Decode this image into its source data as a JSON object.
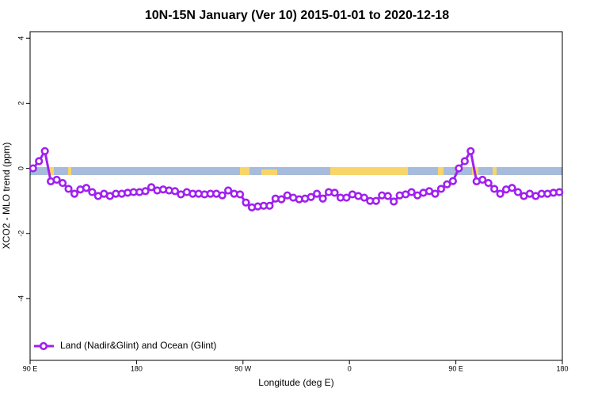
{
  "chart_data": {
    "type": "line",
    "title": "10N-15N January (Ver 10)   2015-01-01 to 2020-12-18",
    "x_label": "Longitude (deg E)",
    "y_label": "XCO2 - MLO trend (ppm)",
    "xlim": [
      90,
      540
    ],
    "ylim": [
      -5.9,
      4.2
    ],
    "xticks": [
      {
        "value": 90,
        "label": "90 E"
      },
      180,
      {
        "value": 270,
        "label": "90 W"
      },
      {
        "value": 360,
        "label": "0"
      },
      {
        "value": 450,
        "label": "90 E"
      },
      {
        "value": 540,
        "label": "180"
      }
    ],
    "yticks": [
      -4,
      -2,
      0,
      2,
      4
    ],
    "grid": false,
    "legend": "bottom-left",
    "x": [
      92.5,
      97.5,
      102.5,
      107.5,
      112.5,
      117.5,
      122.5,
      127.5,
      132.5,
      137.5,
      142.5,
      147.5,
      152.5,
      157.5,
      162.5,
      167.5,
      172.5,
      177.5,
      182.5,
      187.5,
      192.5,
      197.5,
      202.5,
      207.5,
      212.5,
      217.5,
      222.5,
      227.5,
      232.5,
      237.5,
      242.5,
      247.5,
      252.5,
      257.5,
      262.5,
      267.5,
      272.5,
      277.5,
      282.5,
      287.5,
      292.5,
      297.5,
      302.5,
      307.5,
      312.5,
      317.5,
      322.5,
      327.5,
      332.5,
      337.5,
      342.5,
      347.5,
      352.5,
      357.5,
      362.5,
      367.5,
      372.5,
      377.5,
      382.5,
      387.5,
      392.5,
      397.5,
      402.5,
      407.5,
      412.5,
      417.5,
      422.5,
      427.5,
      432.5,
      437.5,
      442.5,
      447.5,
      452.5,
      457.5,
      462.5,
      467.5,
      472.5,
      477.5,
      482.5,
      487.5,
      492.5,
      497.5,
      502.5,
      507.5,
      512.5,
      517.5,
      522.5,
      527.5,
      532.5,
      537.5
    ],
    "series": [
      {
        "name": "Land (Nadir&Glint) and Ocean (Glint)",
        "color": "#a020f0",
        "values": [
          0.0,
          0.22,
          0.53,
          -0.4,
          -0.35,
          -0.45,
          -0.63,
          -0.78,
          -0.65,
          -0.6,
          -0.73,
          -0.85,
          -0.78,
          -0.85,
          -0.78,
          -0.78,
          -0.75,
          -0.73,
          -0.73,
          -0.7,
          -0.58,
          -0.68,
          -0.65,
          -0.68,
          -0.7,
          -0.8,
          -0.73,
          -0.78,
          -0.78,
          -0.8,
          -0.78,
          -0.78,
          -0.83,
          -0.68,
          -0.78,
          -0.8,
          -1.05,
          -1.2,
          -1.17,
          -1.15,
          -1.15,
          -0.93,
          -0.95,
          -0.83,
          -0.9,
          -0.95,
          -0.93,
          -0.88,
          -0.78,
          -0.93,
          -0.73,
          -0.75,
          -0.9,
          -0.9,
          -0.8,
          -0.85,
          -0.9,
          -1.0,
          -1.0,
          -0.83,
          -0.85,
          -1.02,
          -0.83,
          -0.8,
          -0.73,
          -0.83,
          -0.75,
          -0.7,
          -0.78,
          -0.63,
          -0.49,
          -0.39,
          0.0,
          0.22,
          0.53,
          -0.4,
          -0.35,
          -0.45,
          -0.63,
          -0.78,
          -0.65,
          -0.6,
          -0.73,
          -0.85,
          -0.78,
          -0.85,
          -0.78,
          -0.78,
          -0.75,
          -0.73
        ]
      }
    ]
  }
}
